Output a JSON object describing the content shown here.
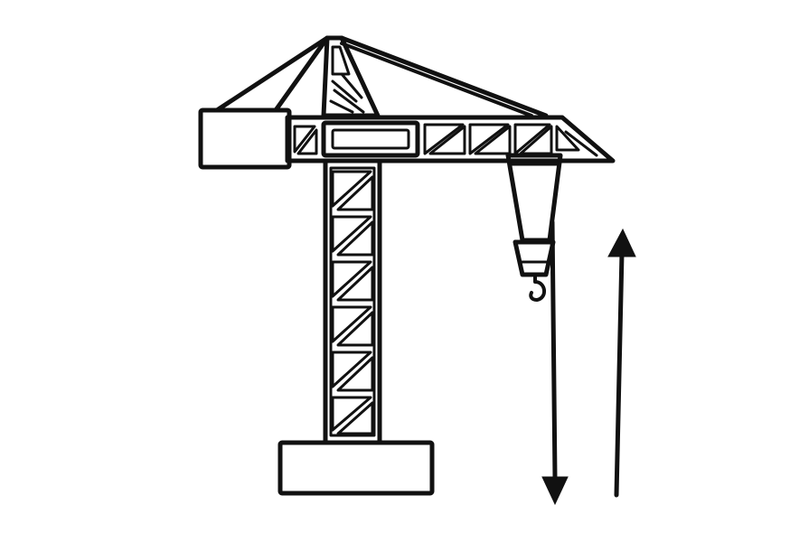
{
  "diagram": {
    "subject": "tower-crane",
    "colors": {
      "ink": "#111111",
      "background": "#ffffff"
    },
    "arrows": [
      {
        "id": "lowering-arrow",
        "direction": "down"
      },
      {
        "id": "lifting-arrow",
        "direction": "up"
      }
    ]
  }
}
